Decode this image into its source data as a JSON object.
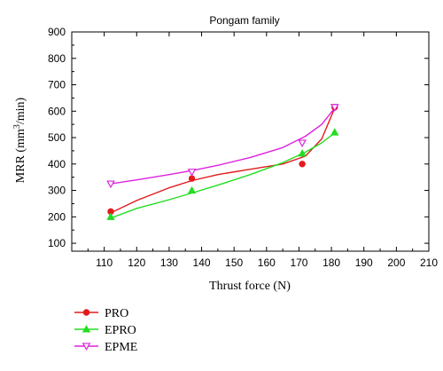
{
  "chart_data": {
    "type": "line",
    "title": "Pongam family",
    "xlabel": "Thrust force (N)",
    "ylabel_main": "MRR (mm",
    "ylabel_sup": "3",
    "ylabel_end": "/min)",
    "xlim": [
      100,
      210
    ],
    "ylim": [
      70,
      900
    ],
    "x_ticks": [
      "110",
      "120",
      "130",
      "140",
      "150",
      "160",
      "170",
      "180",
      "190",
      "200",
      "210"
    ],
    "y_ticks": [
      "100",
      "200",
      "300",
      "400",
      "500",
      "600",
      "700",
      "800",
      "900"
    ],
    "grid": false,
    "legend_position": "bottom-left",
    "series": [
      {
        "name": "PRO",
        "color": "#e31a1c",
        "marker": "circle",
        "x": [
          112,
          137,
          171,
          181
        ],
        "y": [
          220,
          345,
          400,
          615
        ],
        "curve": [
          [
            112,
            215
          ],
          [
            120,
            262
          ],
          [
            130,
            310
          ],
          [
            137,
            337
          ],
          [
            145,
            360
          ],
          [
            155,
            380
          ],
          [
            165,
            400
          ],
          [
            172,
            430
          ],
          [
            177,
            495
          ],
          [
            181,
            612
          ]
        ]
      },
      {
        "name": "EPRO",
        "color": "#22dd22",
        "marker": "triangle",
        "x": [
          112,
          137,
          171,
          181
        ],
        "y": [
          200,
          300,
          440,
          520
        ],
        "curve": [
          [
            112,
            195
          ],
          [
            120,
            232
          ],
          [
            130,
            265
          ],
          [
            137,
            290
          ],
          [
            145,
            320
          ],
          [
            155,
            360
          ],
          [
            165,
            405
          ],
          [
            172,
            445
          ],
          [
            177,
            480
          ],
          [
            181,
            518
          ]
        ]
      },
      {
        "name": "EPME",
        "color": "#dd22dd",
        "marker": "triangle-down",
        "x": [
          112,
          137,
          171,
          181
        ],
        "y": [
          325,
          370,
          480,
          615
        ],
        "curve": [
          [
            112,
            325
          ],
          [
            120,
            340
          ],
          [
            130,
            360
          ],
          [
            137,
            375
          ],
          [
            145,
            395
          ],
          [
            155,
            425
          ],
          [
            165,
            462
          ],
          [
            172,
            505
          ],
          [
            177,
            550
          ],
          [
            181,
            612
          ]
        ]
      }
    ]
  }
}
